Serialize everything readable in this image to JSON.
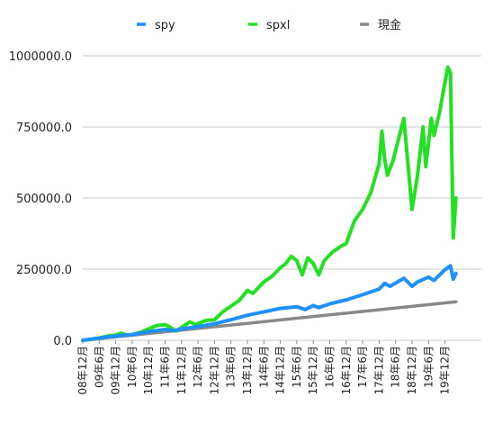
{
  "chart_data": {
    "type": "line",
    "title": "",
    "xlabel": "",
    "ylabel": "",
    "ylim": [
      0,
      1000000
    ],
    "y_ticks": [
      0,
      250000,
      500000,
      750000,
      1000000
    ],
    "y_tick_labels": [
      "0.0",
      "250000.0",
      "500000.0",
      "750000.0",
      "1000000.0"
    ],
    "grid": "horizontal",
    "legend_position": "top",
    "x_start": "2008-12",
    "x_tick_labels": [
      "08年12月",
      "09年6月",
      "09年12月",
      "10年6月",
      "10年12月",
      "11年6月",
      "11年12月",
      "12年6月",
      "12年12月",
      "13年6月",
      "13年12月",
      "14年6月",
      "14年12月",
      "15年6月",
      "15年12月",
      "16年6月",
      "16年12月",
      "17年6月",
      "17年12月",
      "18年6月",
      "18年12月",
      "19年6月",
      "19年12月"
    ],
    "series": [
      {
        "name": "spy",
        "color": "#1e90ff",
        "points": [
          [
            "2008-12",
            0
          ],
          [
            "2009-06",
            8000
          ],
          [
            "2009-12",
            15000
          ],
          [
            "2010-06",
            20000
          ],
          [
            "2010-12",
            30000
          ],
          [
            "2011-06",
            38000
          ],
          [
            "2011-09",
            34000
          ],
          [
            "2011-12",
            40000
          ],
          [
            "2012-06",
            48000
          ],
          [
            "2012-12",
            58000
          ],
          [
            "2013-06",
            72000
          ],
          [
            "2013-12",
            88000
          ],
          [
            "2014-06",
            100000
          ],
          [
            "2014-12",
            112000
          ],
          [
            "2015-06",
            118000
          ],
          [
            "2015-09",
            108000
          ],
          [
            "2015-12",
            122000
          ],
          [
            "2016-02",
            115000
          ],
          [
            "2016-06",
            128000
          ],
          [
            "2016-12",
            142000
          ],
          [
            "2017-06",
            160000
          ],
          [
            "2017-12",
            180000
          ],
          [
            "2018-02",
            200000
          ],
          [
            "2018-04",
            190000
          ],
          [
            "2018-09",
            218000
          ],
          [
            "2018-12",
            190000
          ],
          [
            "2019-02",
            205000
          ],
          [
            "2019-06",
            222000
          ],
          [
            "2019-08",
            210000
          ],
          [
            "2019-12",
            248000
          ],
          [
            "2020-02",
            262000
          ],
          [
            "2020-03",
            215000
          ],
          [
            "2020-04",
            235000
          ]
        ]
      },
      {
        "name": "spxl",
        "color": "#22e022",
        "points": [
          [
            "2008-12",
            0
          ],
          [
            "2009-03",
            3000
          ],
          [
            "2009-06",
            8000
          ],
          [
            "2009-09",
            15000
          ],
          [
            "2009-12",
            18000
          ],
          [
            "2010-02",
            25000
          ],
          [
            "2010-04",
            18000
          ],
          [
            "2010-06",
            20000
          ],
          [
            "2010-09",
            28000
          ],
          [
            "2010-12",
            40000
          ],
          [
            "2011-03",
            52000
          ],
          [
            "2011-06",
            55000
          ],
          [
            "2011-08",
            45000
          ],
          [
            "2011-10",
            32000
          ],
          [
            "2011-12",
            45000
          ],
          [
            "2012-03",
            65000
          ],
          [
            "2012-05",
            55000
          ],
          [
            "2012-09",
            70000
          ],
          [
            "2012-12",
            72000
          ],
          [
            "2013-03",
            100000
          ],
          [
            "2013-06",
            120000
          ],
          [
            "2013-09",
            140000
          ],
          [
            "2013-12",
            175000
          ],
          [
            "2014-02",
            165000
          ],
          [
            "2014-06",
            205000
          ],
          [
            "2014-09",
            225000
          ],
          [
            "2014-12",
            255000
          ],
          [
            "2015-02",
            270000
          ],
          [
            "2015-04",
            295000
          ],
          [
            "2015-06",
            280000
          ],
          [
            "2015-08",
            230000
          ],
          [
            "2015-10",
            290000
          ],
          [
            "2015-12",
            270000
          ],
          [
            "2016-02",
            230000
          ],
          [
            "2016-04",
            280000
          ],
          [
            "2016-07",
            310000
          ],
          [
            "2016-10",
            330000
          ],
          [
            "2016-12",
            340000
          ],
          [
            "2017-03",
            420000
          ],
          [
            "2017-06",
            460000
          ],
          [
            "2017-09",
            520000
          ],
          [
            "2017-12",
            620000
          ],
          [
            "2018-01",
            735000
          ],
          [
            "2018-02",
            640000
          ],
          [
            "2018-03",
            580000
          ],
          [
            "2018-05",
            630000
          ],
          [
            "2018-09",
            780000
          ],
          [
            "2018-12",
            460000
          ],
          [
            "2019-02",
            580000
          ],
          [
            "2019-04",
            750000
          ],
          [
            "2019-05",
            610000
          ],
          [
            "2019-07",
            780000
          ],
          [
            "2019-08",
            720000
          ],
          [
            "2019-10",
            800000
          ],
          [
            "2020-01",
            960000
          ],
          [
            "2020-02",
            940000
          ],
          [
            "2020-03",
            360000
          ],
          [
            "2020-04",
            500000
          ]
        ]
      },
      {
        "name": "現金",
        "color": "#888888",
        "points": [
          [
            "2008-12",
            0
          ],
          [
            "2020-04",
            135000
          ]
        ]
      }
    ]
  }
}
